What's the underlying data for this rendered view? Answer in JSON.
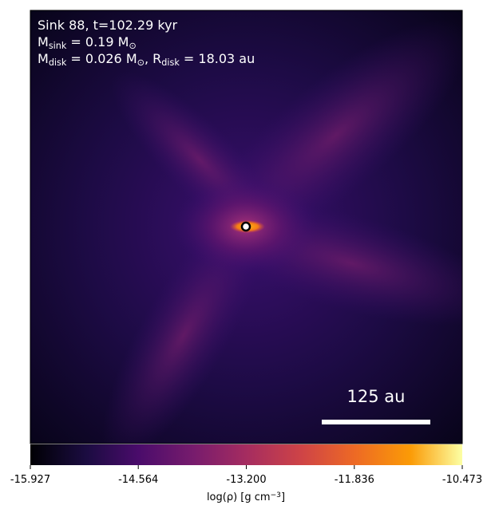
{
  "chart_data": {
    "type": "image",
    "annotations": [
      [
        {
          "text": "Sink 88, t=102.29 kyr"
        }
      ],
      [
        {
          "text": "M"
        },
        {
          "sub": "sink"
        },
        {
          "text": " = 0.19 M"
        },
        {
          "sub": "⊙"
        }
      ],
      [
        {
          "text": "M"
        },
        {
          "sub": "disk"
        },
        {
          "text": " = 0.026 M"
        },
        {
          "sub": "⊙"
        },
        {
          "text": ", R"
        },
        {
          "sub": "disk"
        },
        {
          "text": " = 18.03 au"
        }
      ]
    ],
    "scale_bar_label": "125 au",
    "colorbar": {
      "clim": [
        -15.927,
        -10.473
      ],
      "ticks": [
        -15.927,
        -14.564,
        {
          "value": -13.2,
          "label": "-13.200"
        },
        -11.836,
        -10.473
      ],
      "label": [
        {
          "text": "log(ρ) [g cm"
        },
        {
          "sup": "−3"
        },
        {
          "text": "]"
        }
      ]
    }
  }
}
